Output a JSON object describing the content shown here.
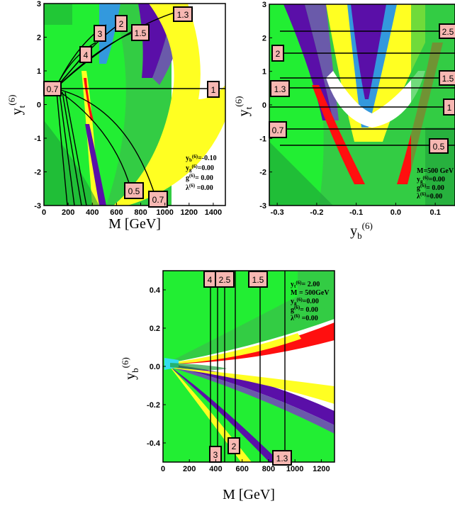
{
  "colors": {
    "bright_green": "#22ee33",
    "mid_green": "#33cc44",
    "dark_green": "#1f9f3a",
    "light_blue": "#3399dd",
    "cyan": "#33ddee",
    "purple": "#5a0fa8",
    "slate": "#6a5aaa",
    "yellow": "#ffff22",
    "red": "#ff0f0f",
    "white": "#ffffff",
    "label_box": "#f7b7b2"
  },
  "chart_data": [
    {
      "id": "top-left",
      "type": "heatmap",
      "xlabel": "M [GeV]",
      "ylabel": "y_t^(6)",
      "xlim": [
        0,
        1500
      ],
      "ylim": [
        -3,
        3
      ],
      "xticks": [
        "0",
        "200",
        "400",
        "600",
        "800",
        "1000",
        "1200",
        "1400"
      ],
      "yticks": [
        "-3",
        "-2",
        "-1",
        "0",
        "1",
        "2",
        "3"
      ],
      "contour_labels": [
        "0.7",
        "4",
        "3",
        "2",
        "1.5",
        "1.3",
        "1",
        "0.7",
        "0.5"
      ],
      "info": [
        "y_b^(6)=-0.10",
        "y_g^(6)=0.00",
        "g^(6)= 0.00",
        "λ^(6) =0.00"
      ]
    },
    {
      "id": "top-right",
      "type": "heatmap",
      "xlabel": "y_b^(6)",
      "ylabel": "y_t^(6)",
      "xlim": [
        -0.32,
        0.15
      ],
      "ylim": [
        -3,
        3
      ],
      "xticks": [
        "-0.3",
        "-0.2",
        "-0.1",
        "0.0",
        "0.1"
      ],
      "yticks": [
        "-3",
        "-2",
        "-1",
        "0",
        "1",
        "2",
        "3"
      ],
      "contour_labels": [
        "2.5",
        "2",
        "1.5",
        "1.3",
        "1",
        "0.7",
        "0.5"
      ],
      "info": [
        "M=500 GeV",
        "y_g^(6)=0.00",
        "g^(6)= 0.00",
        "λ^(6)=0.00"
      ]
    },
    {
      "id": "bottom",
      "type": "heatmap",
      "xlabel": "M [GeV]",
      "ylabel": "y_b^(6)",
      "xlim": [
        0,
        1300
      ],
      "ylim": [
        -0.5,
        0.5
      ],
      "xticks": [
        "0",
        "200",
        "400",
        "600",
        "800",
        "1000",
        "1200"
      ],
      "yticks": [
        "-0.4",
        "-0.2",
        "0.0",
        "0.2",
        "0.4"
      ],
      "contour_labels_top": [
        "4",
        "2.5",
        "1.5"
      ],
      "contour_labels_bottom": [
        "3",
        "2",
        "1.3"
      ],
      "info": [
        "y_t^(6)= 2.00",
        "M = 500GeV",
        "y_g^(6)=0.00",
        "g^(6)= 0.00",
        "λ^(6) =0.00"
      ]
    }
  ]
}
